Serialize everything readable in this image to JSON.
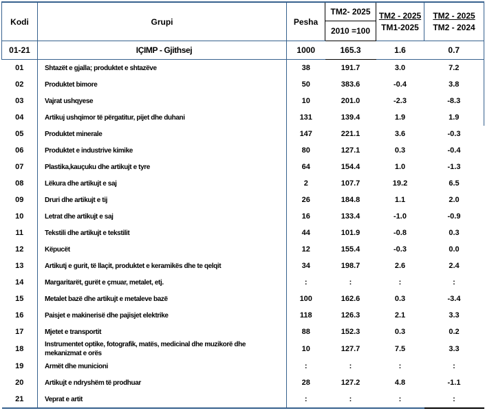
{
  "table": {
    "headers": {
      "kodi": "Kodi",
      "grupi": "Grupi",
      "pesha": "Pesha",
      "index_top": "TM2- 2025",
      "index_bottom": "2010 =100",
      "prev_top": "TM2 - 2025",
      "prev_bottom": "TM1-2025",
      "year_top": "TM2 - 2025",
      "year_bottom": "TM2 - 2024"
    },
    "total": {
      "code": "01-21",
      "group": "IÇIMP - Gjithsej",
      "weight": "1000",
      "index": "165.3",
      "tm1": "1.6",
      "ty": "0.7"
    },
    "rows": [
      {
        "code": "01",
        "group": "Shtazët e gjalla; produktet e shtazëve",
        "weight": "38",
        "index": "191.7",
        "tm1": "3.0",
        "ty": "7.2"
      },
      {
        "code": "02",
        "group": "Produktet bimore",
        "weight": "50",
        "index": "383.6",
        "tm1": "-0.4",
        "ty": "3.8"
      },
      {
        "code": "03",
        "group": "Vajrat ushqyese",
        "weight": "10",
        "index": "201.0",
        "tm1": "-2.3",
        "ty": "-8.3"
      },
      {
        "code": "04",
        "group": "Artikuj ushqimor të përgatitur, pijet dhe duhani",
        "weight": "131",
        "index": "139.4",
        "tm1": "1.9",
        "ty": "1.9"
      },
      {
        "code": "05",
        "group": "Produktet minerale",
        "weight": "147",
        "index": "221.1",
        "tm1": "3.6",
        "ty": "-0.3"
      },
      {
        "code": "06",
        "group": "Produktet e industrive kimike",
        "weight": "80",
        "index": "127.1",
        "tm1": "0.3",
        "ty": "-0.4"
      },
      {
        "code": "07",
        "group": "Plastika,kauçuku dhe artikujt e tyre",
        "weight": "64",
        "index": "154.4",
        "tm1": "1.0",
        "ty": "-1.3"
      },
      {
        "code": "08",
        "group": "Lëkura dhe artikujt e saj",
        "weight": "2",
        "index": "107.7",
        "tm1": "19.2",
        "ty": "6.5"
      },
      {
        "code": "09",
        "group": "Druri dhe artikujt e tij",
        "weight": "26",
        "index": "184.8",
        "tm1": "1.1",
        "ty": "2.0"
      },
      {
        "code": "10",
        "group": "Letrat dhe artikujt e saj",
        "weight": "16",
        "index": "133.4",
        "tm1": "-1.0",
        "ty": "-0.9"
      },
      {
        "code": "11",
        "group": "Tekstili dhe artikujt e tekstilit",
        "weight": "44",
        "index": "101.9",
        "tm1": "-0.8",
        "ty": "0.3"
      },
      {
        "code": "12",
        "group": "Këpucët",
        "weight": "12",
        "index": "155.4",
        "tm1": "-0.3",
        "ty": "0.0"
      },
      {
        "code": "13",
        "group": "Artikutj e gurit, të llaçit, produktet e keramikës dhe te qelqit",
        "weight": "34",
        "index": "198.7",
        "tm1": "2.6",
        "ty": "2.4"
      },
      {
        "code": "14",
        "group": "Margaritarët, gurët e çmuar, metalet, etj.",
        "weight": ":",
        "index": ":",
        "tm1": ":",
        "ty": ":"
      },
      {
        "code": "15",
        "group": "Metalet bazë dhe artikujt e metaleve bazë",
        "weight": "100",
        "index": "162.6",
        "tm1": "0.3",
        "ty": "-3.4"
      },
      {
        "code": "16",
        "group": "Paisjet e makinerisë dhe pajisjet elektrike",
        "weight": "118",
        "index": "126.3",
        "tm1": "2.1",
        "ty": "3.3"
      },
      {
        "code": "17",
        "group": "Mjetet e transportit",
        "weight": "88",
        "index": "152.3",
        "tm1": "0.3",
        "ty": "0.2"
      },
      {
        "code": "18",
        "group": "Instrumentet optike, fotografik, matës, medicinal dhe muzikorë dhe mekanizmat e orës",
        "weight": "10",
        "index": "127.7",
        "tm1": "7.5",
        "ty": "3.3"
      },
      {
        "code": "19",
        "group": "Armët dhe municioni",
        "weight": ":",
        "index": ":",
        "tm1": ":",
        "ty": ":"
      },
      {
        "code": "20",
        "group": "Artikujt e ndryshëm të prodhuar",
        "weight": "28",
        "index": "127.2",
        "tm1": "4.8",
        "ty": "-1.1"
      },
      {
        "code": "21",
        "group": "Veprat e artit",
        "weight": ":",
        "index": ":",
        "tm1": ":",
        "ty": ":"
      }
    ]
  },
  "colors": {
    "border_blue": "#35608d",
    "border_black": "#000000",
    "background": "#ffffff"
  },
  "missing_value_symbol": ":"
}
